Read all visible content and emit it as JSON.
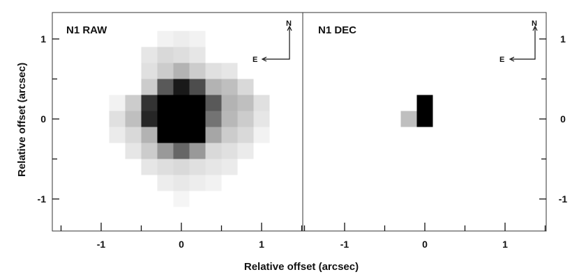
{
  "chart_data": [
    {
      "type": "heatmap",
      "panel_title": "N1 RAW",
      "xlabel": "Relative offset (arcsec)",
      "ylabel": "Relative offset (arcsec)",
      "xlim": [
        -1.65,
        1.5
      ],
      "ylim": [
        -1.45,
        1.3
      ],
      "x_ticks": [
        -1,
        0,
        1
      ],
      "y_ticks": [
        1,
        0,
        -1
      ],
      "x_tick_labels": [
        "-1",
        "0",
        "1"
      ],
      "y_tick_labels": [
        "1",
        "0",
        "-1"
      ],
      "pixel_scale_arcsec": 0.2,
      "pixel_columns": [
        -0.8,
        -0.6,
        -0.4,
        -0.2,
        0.0,
        0.2,
        0.4,
        0.6,
        0.8,
        1.0
      ],
      "pixel_rows": [
        1.0,
        0.8,
        0.6,
        0.4,
        0.2,
        0.0,
        -0.2,
        -0.4,
        -0.6,
        -0.8,
        -1.0
      ],
      "intensity_grid": [
        [
          0,
          0,
          0,
          0.05,
          0.07,
          0.05,
          0,
          0,
          0,
          0
        ],
        [
          0,
          0,
          0.1,
          0.15,
          0.13,
          0.1,
          0,
          0,
          0,
          0
        ],
        [
          0,
          0,
          0.12,
          0.2,
          0.3,
          0.2,
          0.12,
          0.1,
          0,
          0
        ],
        [
          0,
          0,
          0.2,
          0.65,
          0.9,
          0.7,
          0.3,
          0.25,
          0.15,
          0
        ],
        [
          0.05,
          0.2,
          0.8,
          1,
          1,
          1,
          0.65,
          0.3,
          0.25,
          0.12
        ],
        [
          0.12,
          0.25,
          0.85,
          1,
          1,
          1,
          0.55,
          0.28,
          0.2,
          0.1
        ],
        [
          0.08,
          0.15,
          0.3,
          1,
          1,
          1,
          0.35,
          0.2,
          0.15,
          0.05
        ],
        [
          0,
          0.1,
          0.2,
          0.4,
          0.6,
          0.4,
          0.15,
          0.12,
          0.08,
          0
        ],
        [
          0,
          0,
          0.1,
          0.13,
          0.15,
          0.12,
          0.1,
          0.08,
          0,
          0
        ],
        [
          0,
          0,
          0,
          0.07,
          0.09,
          0.07,
          0.05,
          0,
          0,
          0
        ],
        [
          0,
          0,
          0,
          0,
          0.04,
          0,
          0,
          0,
          0,
          0
        ]
      ],
      "compass": {
        "north_label": "N",
        "east_label": "E"
      }
    },
    {
      "type": "heatmap",
      "panel_title": "N1 DEC",
      "xlim": [
        -1.65,
        1.5
      ],
      "ylim": [
        -1.45,
        1.3
      ],
      "x_ticks": [
        -1,
        0,
        1
      ],
      "y_ticks": [
        1,
        0,
        -1
      ],
      "x_tick_labels": [
        "-1",
        "0",
        "1"
      ],
      "y_tick_labels": [
        "1",
        "0",
        "-1"
      ],
      "cells": [
        {
          "x": -0.2,
          "y": 0.0,
          "intensity": 0.25
        },
        {
          "x": 0.0,
          "y": 0.0,
          "intensity": 1.0
        },
        {
          "x": 0.0,
          "y": 0.2,
          "intensity": 1.0
        }
      ],
      "compass": {
        "north_label": "N",
        "east_label": "E"
      }
    }
  ],
  "figure": {
    "shared_xlabel": "Relative offset (arcsec)",
    "left_ylabel": "Relative offset (arcsec)"
  }
}
